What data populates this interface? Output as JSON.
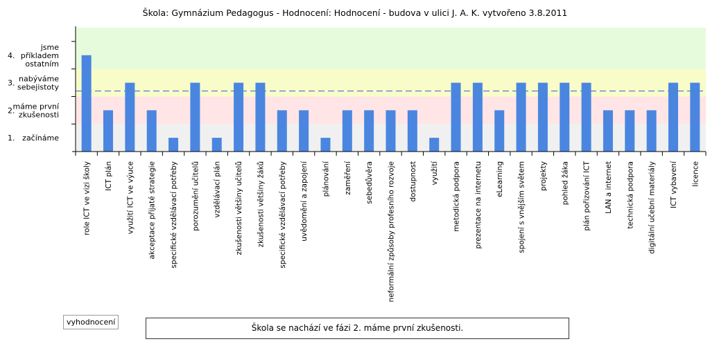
{
  "chart_data": {
    "type": "bar",
    "title": "Škola: Gymnázium Pedagogus - Hodnocení: Hodnocení - budova v ulici J. A. K. vytvořeno 3.8.2011",
    "xlabel": "",
    "ylabel": "",
    "ylim": [
      0,
      4.5
    ],
    "grid": false,
    "levels": [
      {
        "number": "1.",
        "label_lines": [
          "začínáme"
        ],
        "value": 1
      },
      {
        "number": "2.",
        "label_lines": [
          "máme první",
          "zkušenosti"
        ],
        "value": 2
      },
      {
        "number": "3.",
        "label_lines": [
          "nabýváme",
          "sebejistoty"
        ],
        "value": 3
      },
      {
        "number": "4.",
        "label_lines": [
          "jsme",
          "příkladem",
          "ostatním"
        ],
        "value": 4
      }
    ],
    "bands": [
      {
        "from": 0,
        "to": 1,
        "color": "#f0f0f0"
      },
      {
        "from": 1,
        "to": 2,
        "color": "#ffe5e5"
      },
      {
        "from": 2,
        "to": 3,
        "color": "#f8fcc8"
      },
      {
        "from": 3,
        "to": 4.5,
        "color": "#e6fbdc"
      }
    ],
    "average_line": 2.2,
    "categories": [
      "role ICT ve vizi školy",
      "ICT plán",
      "využití ICT ve výuce",
      "akceptace přijaté strategie",
      "specifické vzdělávací potřeby",
      "porozumění učitelů",
      "vzdělávací plán",
      "zkušenosti většiny učitelů",
      "zkušenosti většiny žáků",
      "specifické vzdělávací potřeby",
      "uvědomění a zapojení",
      "plánování",
      "zaměření",
      "sebedůvěra",
      "neformální způsoby profesního rozvoje",
      "dostupnost",
      "využití",
      "metodická podpora",
      "prezentace na internetu",
      "eLearning",
      "spojení s vnějším světem",
      "projekty",
      "pohled žáka",
      "plán pořizování ICT",
      "LAN a internet",
      "technická podpora",
      "digitální učební materiály",
      "ICT vybavení",
      "licence"
    ],
    "values": [
      3.5,
      1.5,
      2.5,
      1.5,
      0.5,
      2.5,
      0.5,
      2.5,
      2.5,
      1.5,
      1.5,
      0.5,
      1.5,
      1.5,
      1.5,
      1.5,
      0.5,
      2.5,
      2.5,
      1.5,
      2.5,
      2.5,
      2.5,
      2.5,
      1.5,
      1.5,
      1.5,
      2.5,
      2.5
    ],
    "bar_color": "#4a86e0",
    "average_color": "#3a5ce0"
  },
  "controls": {
    "evaluate_label": "vyhodnocení"
  },
  "result": {
    "text": "Škola se nachází ve fázi 2. máme první zkušenosti."
  }
}
